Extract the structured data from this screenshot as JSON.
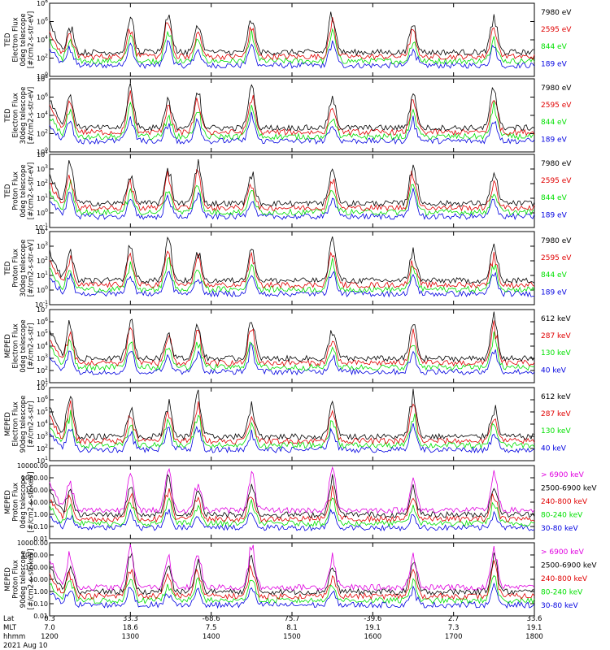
{
  "chart_data": [
    {
      "type": "line",
      "title": "",
      "ylabel": "TED\nElectron Flux\n0deg telescope\n[#/cm2-s-str-eV]",
      "log": true,
      "ylim": [
        1,
        100000000
      ],
      "ytick_labels": [
        "10^0",
        "10^2",
        "10^4",
        "10^6",
        "10^8"
      ],
      "series": [
        {
          "name": "7980 eV",
          "color": "#000000",
          "values": []
        },
        {
          "name": "2595 eV",
          "color": "#e00000",
          "values": []
        },
        {
          "name": "844 eV",
          "color": "#00e000",
          "values": []
        },
        {
          "name": "189 eV",
          "color": "#0000e0",
          "values": []
        }
      ]
    },
    {
      "type": "line",
      "title": "",
      "ylabel": "TED\nElectron Flux\n30deg telescope\n[#/cm2-s-str-eV]",
      "log": true,
      "ylim": [
        1,
        100000000
      ],
      "ytick_labels": [
        "10^0",
        "10^2",
        "10^4",
        "10^6",
        "10^8"
      ],
      "series": [
        {
          "name": "7980 eV",
          "color": "#000000",
          "values": []
        },
        {
          "name": "2595 eV",
          "color": "#e00000",
          "values": []
        },
        {
          "name": "844 eV",
          "color": "#00e000",
          "values": []
        },
        {
          "name": "189 eV",
          "color": "#0000e0",
          "values": []
        }
      ]
    },
    {
      "type": "line",
      "title": "",
      "ylabel": "TED\nProton Flux\n0deg telescope\n[#/cm2-s-str-eV]",
      "log": true,
      "ylim": [
        0.1,
        100000
      ],
      "ytick_labels": [
        "10^-1",
        "10^0",
        "10^1",
        "10^2",
        "10^3",
        "10^4"
      ],
      "series": [
        {
          "name": "7980 eV",
          "color": "#000000",
          "values": []
        },
        {
          "name": "2595 eV",
          "color": "#e00000",
          "values": []
        },
        {
          "name": "844 eV",
          "color": "#00e000",
          "values": []
        },
        {
          "name": "189 eV",
          "color": "#0000e0",
          "values": []
        }
      ]
    },
    {
      "type": "line",
      "title": "",
      "ylabel": "TED\nProton Flux\n30deg telescope\n[#/cm2-s-str-eV]",
      "log": true,
      "ylim": [
        0.1,
        100000
      ],
      "ytick_labels": [
        "10^-1",
        "10^0",
        "10^1",
        "10^2",
        "10^3",
        "10^4"
      ],
      "series": [
        {
          "name": "7980 eV",
          "color": "#000000",
          "values": []
        },
        {
          "name": "2595 eV",
          "color": "#e00000",
          "values": []
        },
        {
          "name": "844 eV",
          "color": "#00e000",
          "values": []
        },
        {
          "name": "189 eV",
          "color": "#0000e0",
          "values": []
        }
      ]
    },
    {
      "type": "line",
      "title": "",
      "ylabel": "MEPED\nElectron Flux\n0deg telescope\n[#/cm2-s-str]",
      "log": true,
      "ylim": [
        10,
        10000000
      ],
      "ytick_labels": [
        "10^1",
        "10^2",
        "10^3",
        "10^4",
        "10^5",
        "10^6",
        "10^7"
      ],
      "series": [
        {
          "name": "612 keV",
          "color": "#000000",
          "values": []
        },
        {
          "name": "287 keV",
          "color": "#e00000",
          "values": []
        },
        {
          "name": "130 keV",
          "color": "#00e000",
          "values": []
        },
        {
          "name": "40 keV",
          "color": "#0000e0",
          "values": []
        }
      ]
    },
    {
      "type": "line",
      "title": "",
      "ylabel": "MEPED\nElectron Flux\n90deg telescope\n[#/cm2-s-str]",
      "log": true,
      "ylim": [
        10,
        10000000
      ],
      "ytick_labels": [
        "10^1",
        "10^2",
        "10^3",
        "10^4",
        "10^5",
        "10^6",
        "10^7"
      ],
      "series": [
        {
          "name": "612 keV",
          "color": "#000000",
          "values": []
        },
        {
          "name": "287 keV",
          "color": "#e00000",
          "values": []
        },
        {
          "name": "130 keV",
          "color": "#00e000",
          "values": []
        },
        {
          "name": "40 keV",
          "color": "#0000e0",
          "values": []
        }
      ]
    },
    {
      "type": "line",
      "title": "",
      "ylabel": "MEPED\nProton Flux\n0deg telescope\n[#/cm2-s-str-keV]",
      "log": true,
      "ylim": [
        0.01,
        10000
      ],
      "ytick_labels": [
        "0.01",
        "0.10",
        "1.00",
        "10.00",
        "100.00",
        "1000.00",
        "10000.00"
      ],
      "series": [
        {
          "name": "> 6900 keV",
          "color": "#e000e0",
          "values": []
        },
        {
          "name": "2500-6900 keV",
          "color": "#000000",
          "values": []
        },
        {
          "name": "240-800 keV",
          "color": "#e00000",
          "values": []
        },
        {
          "name": "80-240 keV",
          "color": "#00e000",
          "values": []
        },
        {
          "name": "30-80 keV",
          "color": "#0000e0",
          "values": []
        }
      ]
    },
    {
      "type": "line",
      "title": "",
      "ylabel": "MEPED\nProton Flux\n90deg telescope\n[#/cm2-s-str-keV]",
      "log": true,
      "ylim": [
        0.01,
        10000
      ],
      "ytick_labels": [
        "0.01",
        "0.10",
        "1.00",
        "10.00",
        "100.00",
        "1000.00",
        "10000.00"
      ],
      "series": [
        {
          "name": "> 6900 keV",
          "color": "#e000e0",
          "values": []
        },
        {
          "name": "2500-6900 keV",
          "color": "#000000",
          "values": []
        },
        {
          "name": "240-800 keV",
          "color": "#e00000",
          "values": []
        },
        {
          "name": "80-240 keV",
          "color": "#00e000",
          "values": []
        },
        {
          "name": "30-80 keV",
          "color": "#0000e0",
          "values": []
        }
      ]
    }
  ],
  "x_axis": {
    "row_labels": [
      "Lat",
      "MLT",
      "hhmm"
    ],
    "ticks": [
      {
        "lat": "0.3",
        "mlt": "7.0",
        "hhmm": "1200"
      },
      {
        "lat": "33.3",
        "mlt": "18.6",
        "hhmm": "1300"
      },
      {
        "lat": "-68.6",
        "mlt": "7.5",
        "hhmm": "1400"
      },
      {
        "lat": "75.7",
        "mlt": "8.1",
        "hhmm": "1500"
      },
      {
        "lat": "-39.6",
        "mlt": "19.1",
        "hhmm": "1600"
      },
      {
        "lat": "2.7",
        "mlt": "7.3",
        "hhmm": "1700"
      },
      {
        "lat": "33.6",
        "mlt": "19.1",
        "hhmm": "1800"
      }
    ],
    "date": "2021 Aug 10"
  }
}
